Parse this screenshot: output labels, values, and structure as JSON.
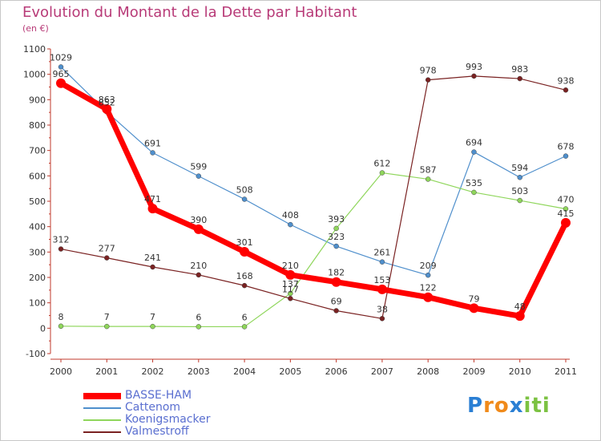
{
  "header": {
    "title": "Evolution du Montant de la Dette par Habitant",
    "subtitle": "(en €)"
  },
  "chart_data": {
    "type": "line",
    "title": "Evolution du Montant de la Dette par Habitant",
    "subtitle": "(en €)",
    "x": [
      "2000",
      "2001",
      "2002",
      "2003",
      "2004",
      "2005",
      "2006",
      "2007",
      "2008",
      "2009",
      "2010",
      "2011"
    ],
    "ylim": [
      -100,
      1100
    ],
    "yticks": [
      -100,
      0,
      100,
      200,
      300,
      400,
      500,
      600,
      700,
      800,
      900,
      1000,
      1100
    ],
    "grid": false,
    "legend_position": "bottom-left",
    "series": [
      {
        "name": "BASSE-HAM",
        "color": "#ff0000",
        "bold": true,
        "values": [
          965,
          863,
          471,
          390,
          301,
          210,
          182,
          153,
          122,
          79,
          48,
          415
        ]
      },
      {
        "name": "Cattenom",
        "color": "#4f8fcc",
        "values": [
          1029,
          852,
          691,
          599,
          508,
          408,
          323,
          261,
          209,
          694,
          594,
          678
        ]
      },
      {
        "name": "Koenigsmacker",
        "color": "#8fd65b",
        "values": [
          8,
          7,
          7,
          6,
          6,
          137,
          393,
          612,
          587,
          535,
          503,
          470
        ]
      },
      {
        "name": "Valmestroff",
        "color": "#7a2222",
        "values": [
          312,
          277,
          241,
          210,
          168,
          117,
          69,
          38,
          978,
          993,
          983,
          938
        ]
      }
    ]
  },
  "logo": {
    "letters": [
      "P",
      "r",
      "o",
      "x",
      "i",
      "t",
      "i"
    ],
    "colors": [
      "#2a7fd4",
      "#f08a1a",
      "#f08a1a",
      "#2a7fd4",
      "#7cc242",
      "#7cc242",
      "#7cc242"
    ]
  }
}
